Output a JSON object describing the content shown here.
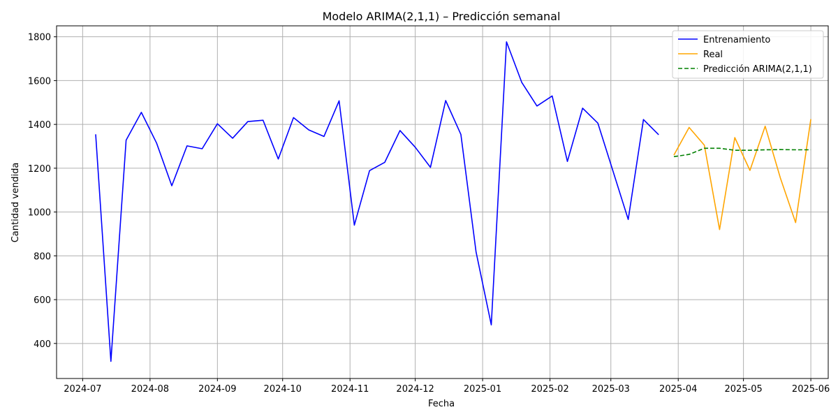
{
  "chart_data": {
    "type": "line",
    "title": "Modelo ARIMA(2,1,1) – Predicción semanal",
    "xlabel": "Fecha",
    "ylabel": "Cantidad vendida",
    "xlim": [
      "2024-06-19",
      "2025-06-09"
    ],
    "ylim": [
      240,
      1850
    ],
    "x_ticks": [
      "2024-07-01",
      "2024-08-01",
      "2024-09-01",
      "2024-10-01",
      "2024-11-01",
      "2024-12-01",
      "2025-01-01",
      "2025-02-01",
      "2025-03-01",
      "2025-04-01",
      "2025-05-01",
      "2025-06-01"
    ],
    "x_tick_labels": [
      "2024-07",
      "2024-08",
      "2024-09",
      "2024-10",
      "2024-11",
      "2024-12",
      "2025-01",
      "2025-02",
      "2025-03",
      "2025-04",
      "2025-05",
      "2025-06"
    ],
    "y_ticks": [
      400,
      600,
      800,
      1000,
      1200,
      1400,
      1600,
      1800
    ],
    "y_tick_labels": [
      "400",
      "600",
      "800",
      "1000",
      "1200",
      "1400",
      "1600",
      "1800"
    ],
    "grid": true,
    "legend_position": "top-right",
    "series": [
      {
        "name": "Entrenamiento",
        "color": "#0000ff",
        "dash": "solid",
        "x": [
          "2024-07-07",
          "2024-07-14",
          "2024-07-21",
          "2024-07-28",
          "2024-08-04",
          "2024-08-11",
          "2024-08-18",
          "2024-08-25",
          "2024-09-01",
          "2024-09-08",
          "2024-09-15",
          "2024-09-22",
          "2024-09-29",
          "2024-10-06",
          "2024-10-13",
          "2024-10-20",
          "2024-10-27",
          "2024-11-03",
          "2024-11-10",
          "2024-11-17",
          "2024-11-24",
          "2024-12-01",
          "2024-12-08",
          "2024-12-15",
          "2024-12-22",
          "2024-12-29",
          "2025-01-05",
          "2025-01-12",
          "2025-01-19",
          "2025-01-26",
          "2025-02-02",
          "2025-02-09",
          "2025-02-16",
          "2025-02-23",
          "2025-03-02",
          "2025-03-09",
          "2025-03-16",
          "2025-03-23"
        ],
        "values": [
          1355,
          318,
          1328,
          1455,
          1315,
          1120,
          1302,
          1289,
          1403,
          1337,
          1413,
          1419,
          1242,
          1431,
          1375,
          1345,
          1508,
          940,
          1189,
          1227,
          1372,
          1296,
          1204,
          1509,
          1354,
          818,
          485,
          1777,
          1592,
          1484,
          1530,
          1231,
          1474,
          1406,
          1187,
          966,
          1422,
          1353
        ]
      },
      {
        "name": "Real",
        "color": "#ffa500",
        "dash": "solid",
        "x": [
          "2025-03-30",
          "2025-04-06",
          "2025-04-13",
          "2025-04-20",
          "2025-04-27",
          "2025-05-04",
          "2025-05-11",
          "2025-05-18",
          "2025-05-25",
          "2025-06-01"
        ],
        "values": [
          1260,
          1386,
          1305,
          920,
          1340,
          1190,
          1392,
          1155,
          952,
          1424
        ]
      },
      {
        "name": "Predicción ARIMA(2,1,1)",
        "color": "#008000",
        "dash": "dashed",
        "x": [
          "2025-03-30",
          "2025-04-06",
          "2025-04-13",
          "2025-04-20",
          "2025-04-27",
          "2025-05-04",
          "2025-05-11",
          "2025-05-18",
          "2025-05-25",
          "2025-06-01"
        ],
        "values": [
          1253,
          1263,
          1291,
          1291,
          1282,
          1282,
          1284,
          1285,
          1284,
          1284
        ]
      }
    ]
  }
}
